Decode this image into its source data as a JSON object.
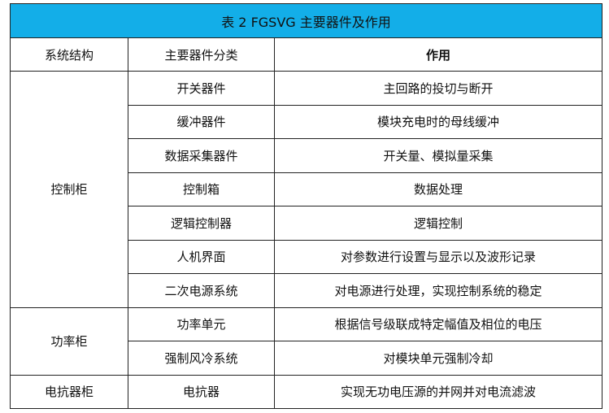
{
  "title": "表 2 FGSVG 主要器件及作用",
  "title_bg": "#13aee8",
  "headers": [
    "系统结构",
    "主要器件分类",
    "作用"
  ],
  "groups": [
    {
      "system": "控制柜",
      "rows": [
        {
          "component": "开关器件",
          "function": "主回路的投切与断开"
        },
        {
          "component": "缓冲器件",
          "function": "模块充电时的母线缓冲"
        },
        {
          "component": "数据采集器件",
          "function": "开关量、模拟量采集"
        },
        {
          "component": "控制箱",
          "function": "数据处理"
        },
        {
          "component": "逻辑控制器",
          "function": "逻辑控制"
        },
        {
          "component": "人机界面",
          "function": "对参数进行设置与显示以及波形记录"
        },
        {
          "component": "二次电源系统",
          "function": "对电源进行处理，实现控制系统的稳定"
        }
      ]
    },
    {
      "system": "功率柜",
      "rows": [
        {
          "component": "功率单元",
          "function": "根据信号级联成特定幅值及相位的电压"
        },
        {
          "component": "强制风冷系统",
          "function": "对模块单元强制冷却"
        }
      ]
    },
    {
      "system": "电抗器柜",
      "rows": [
        {
          "component": "电抗器",
          "function": "实现无功电压源的并网并对电流滤波"
        }
      ]
    }
  ]
}
